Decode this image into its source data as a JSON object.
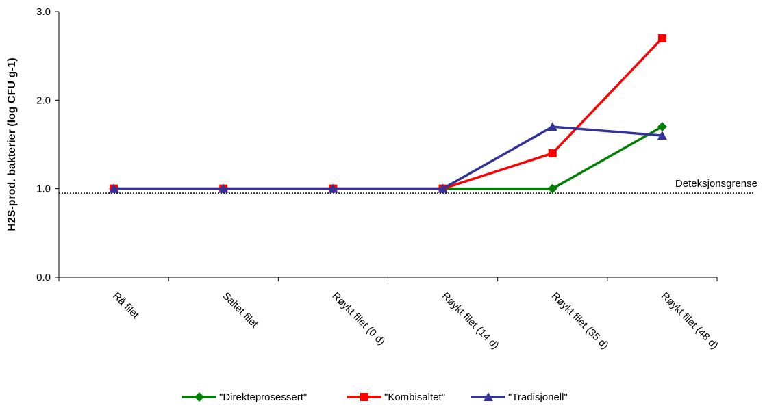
{
  "chart_data": {
    "type": "line",
    "title": "",
    "xlabel": "",
    "ylabel": "H2S-prod. bakterier (log CFU g-1)",
    "ylim": [
      0,
      3
    ],
    "yticks": [
      "0.0",
      "1.0",
      "2.0",
      "3.0"
    ],
    "categories": [
      "Rå filet",
      "Saltet filet",
      "Røykt filet (0 d)",
      "Røykt filet (14 d)",
      "Røykt filet (35 d)",
      "Røykt filet (48 d)"
    ],
    "series": [
      {
        "name": "\"Direkteprosessert\"",
        "color": "#008000",
        "marker": "diamond",
        "values": [
          1.0,
          1.0,
          1.0,
          1.0,
          1.0,
          1.7
        ]
      },
      {
        "name": "\"Kombisaltet\"",
        "color": "#ff0000",
        "marker": "square",
        "values": [
          1.0,
          1.0,
          1.0,
          1.0,
          1.4,
          2.7
        ]
      },
      {
        "name": "\"Tradisjonell\"",
        "color": "#333399",
        "marker": "triangle",
        "values": [
          1.0,
          1.0,
          1.0,
          1.0,
          1.7,
          1.6
        ]
      }
    ],
    "reference_line": {
      "value": 0.95,
      "label": "Deteksjonsgrense",
      "style": "dotted"
    },
    "grid": false,
    "legend_position": "bottom"
  }
}
